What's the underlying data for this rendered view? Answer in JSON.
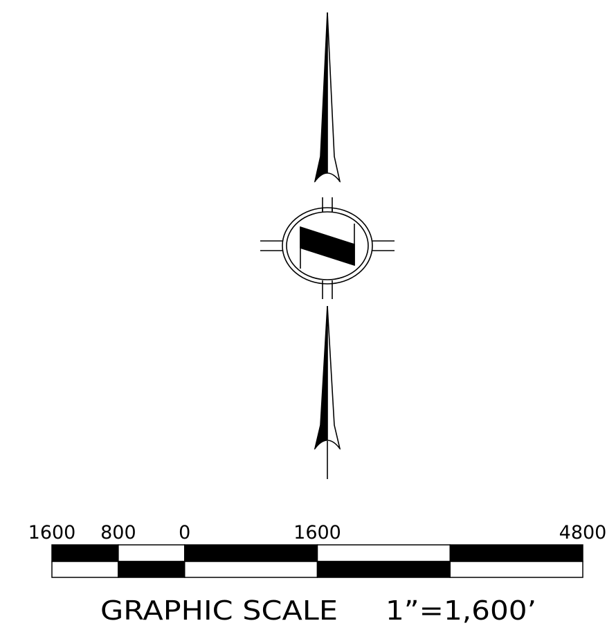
{
  "north_arrow": {
    "icon": "north-arrow-icon",
    "letter": "N",
    "stroke_color": "#000000",
    "fill_color": "#000000"
  },
  "scale": {
    "unit_label": "GRAPHIC SCALE",
    "ratio_label": "1”=1,600’",
    "tick_labels": [
      "1600",
      "800",
      "0",
      "1600",
      "4800"
    ],
    "segments_feet": [
      800,
      800,
      1600,
      1600,
      1600
    ],
    "colors": {
      "dark": "#000000",
      "light": "#ffffff"
    }
  }
}
